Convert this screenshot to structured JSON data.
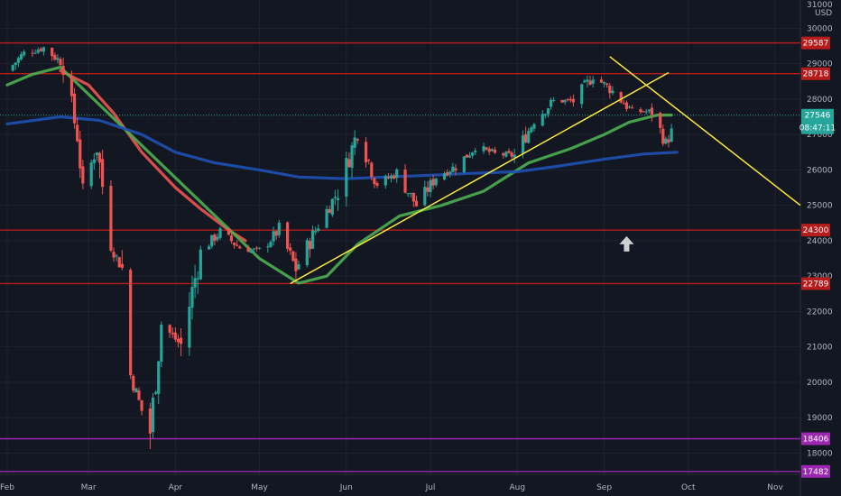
{
  "chart_data": {
    "type": "candlestick",
    "title": "",
    "currency_label": "USD",
    "y_ticks": [
      18000,
      19000,
      20000,
      21000,
      22000,
      23000,
      24000,
      25000,
      26000,
      27000,
      28000,
      29000,
      30000
    ],
    "y_tick_labels": [
      "18000",
      "19000",
      "20000",
      "21000",
      "22000",
      "23000",
      "24000",
      "25000",
      "26000",
      "27000",
      "28000",
      "29000",
      "30000"
    ],
    "y_top_partial_label": "31000",
    "ylim": [
      17400,
      30800
    ],
    "x_ticks": [
      "Feb",
      "Mar",
      "Apr",
      "May",
      "Jun",
      "Jul",
      "Aug",
      "Sep",
      "Oct",
      "Nov"
    ],
    "x_tick_dates": [
      "2020-02-01",
      "2020-03-01",
      "2020-04-01",
      "2020-05-01",
      "2020-06-01",
      "2020-07-01",
      "2020-08-01",
      "2020-09-01",
      "2020-10-01",
      "2020-11-01"
    ],
    "xlim": [
      "2020-02-01",
      "2020-11-10"
    ],
    "price_levels": [
      {
        "value": 29587,
        "label": "29587",
        "color": "#b71c1c"
      },
      {
        "value": 28718,
        "label": "28718",
        "color": "#b71c1c"
      },
      {
        "value": 24300,
        "label": "24300",
        "color": "#b71c1c"
      },
      {
        "value": 22789,
        "label": "22789",
        "color": "#b71c1c"
      },
      {
        "value": 18406,
        "label": "18406",
        "color": "#9c27b0"
      },
      {
        "value": 17482,
        "label": "17482",
        "color": "#9c27b0"
      }
    ],
    "current_price": {
      "value": 27546,
      "label": "27546",
      "countdown": "08:47:11",
      "color": "#26a69a"
    },
    "candles_weekly_close": [
      {
        "date": "2020-02-01",
        "close": 28800
      },
      {
        "date": "2020-02-07",
        "close": 29300
      },
      {
        "date": "2020-02-14",
        "close": 29450
      },
      {
        "date": "2020-02-21",
        "close": 29000
      },
      {
        "date": "2020-02-26",
        "close": 26950
      },
      {
        "date": "2020-02-28",
        "close": 25400
      },
      {
        "date": "2020-03-04",
        "close": 26700
      },
      {
        "date": "2020-03-09",
        "close": 23850
      },
      {
        "date": "2020-03-13",
        "close": 23200
      },
      {
        "date": "2020-03-16",
        "close": 20200
      },
      {
        "date": "2020-03-20",
        "close": 19200
      },
      {
        "date": "2020-03-23",
        "close": 18600
      },
      {
        "date": "2020-03-27",
        "close": 21650
      },
      {
        "date": "2020-04-03",
        "close": 21050
      },
      {
        "date": "2020-04-10",
        "close": 23700
      },
      {
        "date": "2020-04-17",
        "close": 24250
      },
      {
        "date": "2020-04-24",
        "close": 23800
      },
      {
        "date": "2020-05-01",
        "close": 23700
      },
      {
        "date": "2020-05-08",
        "close": 24300
      },
      {
        "date": "2020-05-14",
        "close": 23200
      },
      {
        "date": "2020-05-22",
        "close": 24450
      },
      {
        "date": "2020-05-29",
        "close": 25400
      },
      {
        "date": "2020-06-05",
        "close": 27100
      },
      {
        "date": "2020-06-12",
        "close": 25600
      },
      {
        "date": "2020-06-19",
        "close": 25900
      },
      {
        "date": "2020-06-26",
        "close": 25000
      },
      {
        "date": "2020-07-03",
        "close": 25800
      },
      {
        "date": "2020-07-10",
        "close": 26100
      },
      {
        "date": "2020-07-17",
        "close": 26650
      },
      {
        "date": "2020-07-24",
        "close": 26450
      },
      {
        "date": "2020-07-31",
        "close": 26400
      },
      {
        "date": "2020-08-07",
        "close": 27400
      },
      {
        "date": "2020-08-14",
        "close": 27950
      },
      {
        "date": "2020-08-21",
        "close": 27950
      },
      {
        "date": "2020-08-28",
        "close": 28650
      },
      {
        "date": "2020-09-03",
        "close": 28300
      },
      {
        "date": "2020-09-11",
        "close": 27650
      },
      {
        "date": "2020-09-18",
        "close": 27650
      },
      {
        "date": "2020-09-23",
        "close": 26750
      },
      {
        "date": "2020-09-28",
        "close": 27546
      }
    ],
    "series": [
      {
        "color": "#ef5350",
        "values": [
          {
            "date": "2020-02-20",
            "v": 28800
          },
          {
            "date": "2020-03-01",
            "v": 28400
          },
          {
            "date": "2020-03-10",
            "v": 27600
          },
          {
            "date": "2020-03-20",
            "v": 26500
          },
          {
            "date": "2020-04-01",
            "v": 25500
          },
          {
            "date": "2020-04-10",
            "v": 24900
          },
          {
            "date": "2020-04-20",
            "v": 24300
          },
          {
            "date": "2020-04-26",
            "v": 24000
          }
        ]
      },
      {
        "color": "#4caf50",
        "values": [
          {
            "date": "2020-02-01",
            "v": 28400
          },
          {
            "date": "2020-02-10",
            "v": 28700
          },
          {
            "date": "2020-02-20",
            "v": 28900
          },
          {
            "date": "2020-05-01",
            "v": 23500
          },
          {
            "date": "2020-05-15",
            "v": 22800
          },
          {
            "date": "2020-05-25",
            "v": 23000
          },
          {
            "date": "2020-06-05",
            "v": 23900
          },
          {
            "date": "2020-06-20",
            "v": 24700
          },
          {
            "date": "2020-07-05",
            "v": 25000
          },
          {
            "date": "2020-07-20",
            "v": 25400
          },
          {
            "date": "2020-08-05",
            "v": 26200
          },
          {
            "date": "2020-08-20",
            "v": 26600
          },
          {
            "date": "2020-09-01",
            "v": 27000
          },
          {
            "date": "2020-09-10",
            "v": 27350
          },
          {
            "date": "2020-09-20",
            "v": 27550
          },
          {
            "date": "2020-09-25",
            "v": 27550
          }
        ]
      },
      {
        "color": "#1e50b4",
        "values": [
          {
            "date": "2020-02-01",
            "v": 27300
          },
          {
            "date": "2020-02-20",
            "v": 27500
          },
          {
            "date": "2020-03-05",
            "v": 27400
          },
          {
            "date": "2020-03-20",
            "v": 27000
          },
          {
            "date": "2020-04-01",
            "v": 26500
          },
          {
            "date": "2020-04-15",
            "v": 26200
          },
          {
            "date": "2020-05-01",
            "v": 26000
          },
          {
            "date": "2020-05-15",
            "v": 25800
          },
          {
            "date": "2020-06-01",
            "v": 25750
          },
          {
            "date": "2020-06-15",
            "v": 25800
          },
          {
            "date": "2020-07-01",
            "v": 25850
          },
          {
            "date": "2020-07-15",
            "v": 25900
          },
          {
            "date": "2020-08-01",
            "v": 25950
          },
          {
            "date": "2020-08-15",
            "v": 26100
          },
          {
            "date": "2020-09-01",
            "v": 26300
          },
          {
            "date": "2020-09-15",
            "v": 26450
          },
          {
            "date": "2020-09-27",
            "v": 26500
          }
        ]
      }
    ],
    "trendlines": [
      {
        "color": "#ffeb3b",
        "from": {
          "date": "2020-05-12",
          "v": 22789
        },
        "to": {
          "date": "2020-09-24",
          "v": 28750
        }
      },
      {
        "color": "#ffeb3b",
        "from": {
          "date": "2020-09-03",
          "v": 29200
        },
        "to": {
          "date": "2020-11-10",
          "v": 25000
        }
      }
    ],
    "annotation": {
      "type": "arrow-up",
      "date": "2020-09-09",
      "v": 23900,
      "color": "#cfcfcf"
    }
  }
}
